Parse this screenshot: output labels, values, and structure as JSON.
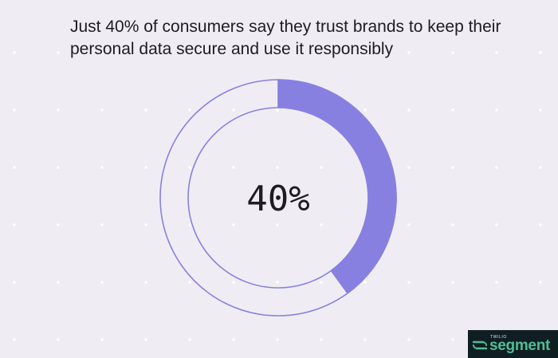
{
  "chart_data": {
    "type": "pie",
    "title": "Just 40% of consumers say they trust brands to keep their personal data secure and use it responsibly",
    "center_label": "40%",
    "value": 40,
    "total": 100,
    "series": [
      {
        "value": 40,
        "color": "#8880e0"
      },
      {
        "value": 60,
        "color": "none"
      }
    ],
    "ring_stroke_color": "#8880e0"
  },
  "brand": {
    "small_text": "TWILIO",
    "name": "segment",
    "icon": "segment-logo-icon"
  },
  "colors": {
    "background": "#efedf3",
    "dots": "#ffffff",
    "text": "#1e1b24"
  }
}
